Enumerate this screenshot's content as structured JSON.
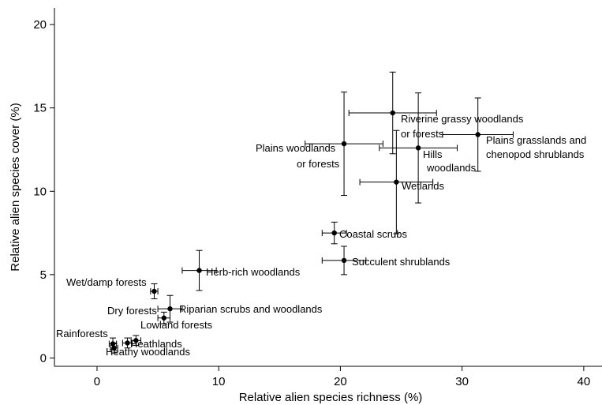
{
  "chart_data": {
    "type": "scatter",
    "xlabel": "Relative alien species richness (%)",
    "ylabel": "Relative alien species cover (%)",
    "xlim": [
      -3.5,
      41.5
    ],
    "ylim": [
      -0.5,
      21
    ],
    "xticks": [
      0,
      10,
      20,
      30,
      40
    ],
    "yticks": [
      0,
      5,
      10,
      15,
      20
    ],
    "grid": false,
    "points": [
      {
        "label": "Rainforests",
        "x": 1.3,
        "y": 0.85,
        "xerr": 0.3,
        "yerr": 0.35
      },
      {
        "label": "Heathy woodlands",
        "x": 1.4,
        "y": 0.6,
        "xerr": 0.3,
        "yerr": 0.3
      },
      {
        "label": "Heathlands",
        "x": 2.5,
        "y": 0.9,
        "xerr": 0.4,
        "yerr": 0.3
      },
      {
        "label": "Lowland forests",
        "x": 3.2,
        "y": 1.05,
        "xerr": 0.4,
        "yerr": 0.3
      },
      {
        "label": "Dry forests",
        "x": 5.5,
        "y": 2.4,
        "xerr": 0.5,
        "yerr": 0.35
      },
      {
        "label": "Riparian scrubs and woodlands",
        "x": 6.0,
        "y": 2.95,
        "xerr": 1.0,
        "yerr": 0.8
      },
      {
        "label": "Wet/damp forests",
        "x": 4.7,
        "y": 4.0,
        "xerr": 0.3,
        "yerr": 0.45
      },
      {
        "label": "Herb-rich woodlands",
        "x": 8.4,
        "y": 5.25,
        "xerr": 1.4,
        "yerr": 1.2
      },
      {
        "label": "Coastal scrubs",
        "x": 19.5,
        "y": 7.5,
        "xerr": 1.0,
        "yerr": 0.65
      },
      {
        "label": "Succulent shrublands",
        "x": 20.3,
        "y": 5.85,
        "xerr": 1.8,
        "yerr": 0.85
      },
      {
        "label": "Wetlands",
        "x": 24.6,
        "y": 10.55,
        "xerr": 3.0,
        "yerr": 3.1
      },
      {
        "label": "Hills woodlands",
        "x": 26.4,
        "y": 12.6,
        "xerr": 3.2,
        "yerr": 3.3
      },
      {
        "label": "Plains woodlands or forests",
        "x": 20.3,
        "y": 12.85,
        "xerr": 3.2,
        "yerr": 3.1
      },
      {
        "label": "Riverine grassy woodlands or forests",
        "x": 24.3,
        "y": 14.7,
        "xerr": 3.6,
        "yerr": 2.45
      },
      {
        "label": "Plains grasslands and chenopod shrublands",
        "x": 31.3,
        "y": 13.4,
        "xerr": 2.9,
        "yerr": 2.2
      }
    ]
  },
  "labels": {
    "lbl_rain": "Rainforests",
    "lbl_heathy": "Heathy woodlands",
    "lbl_heath": "Heathlands",
    "lbl_lowland": "Lowland forests",
    "lbl_dry": "Dry forests",
    "lbl_riparian": "Riparian scrubs and woodlands",
    "lbl_wet": "Wet/damp forests",
    "lbl_herb": "Herb-rich woodlands",
    "lbl_coastal": "Coastal scrubs",
    "lbl_succulent": "Succulent shrublands",
    "lbl_wetlands": "Wetlands",
    "lbl_hills_1": "Hills",
    "lbl_hills_2": "woodlands",
    "lbl_plainsw_1": "Plains woodlands",
    "lbl_plainsw_2": "or forests",
    "lbl_riverine_1": "Riverine grassy woodlands",
    "lbl_riverine_2": "or forests",
    "lbl_plainsg_1": "Plains grasslands and",
    "lbl_plainsg_2": "chenopod shrublands"
  }
}
